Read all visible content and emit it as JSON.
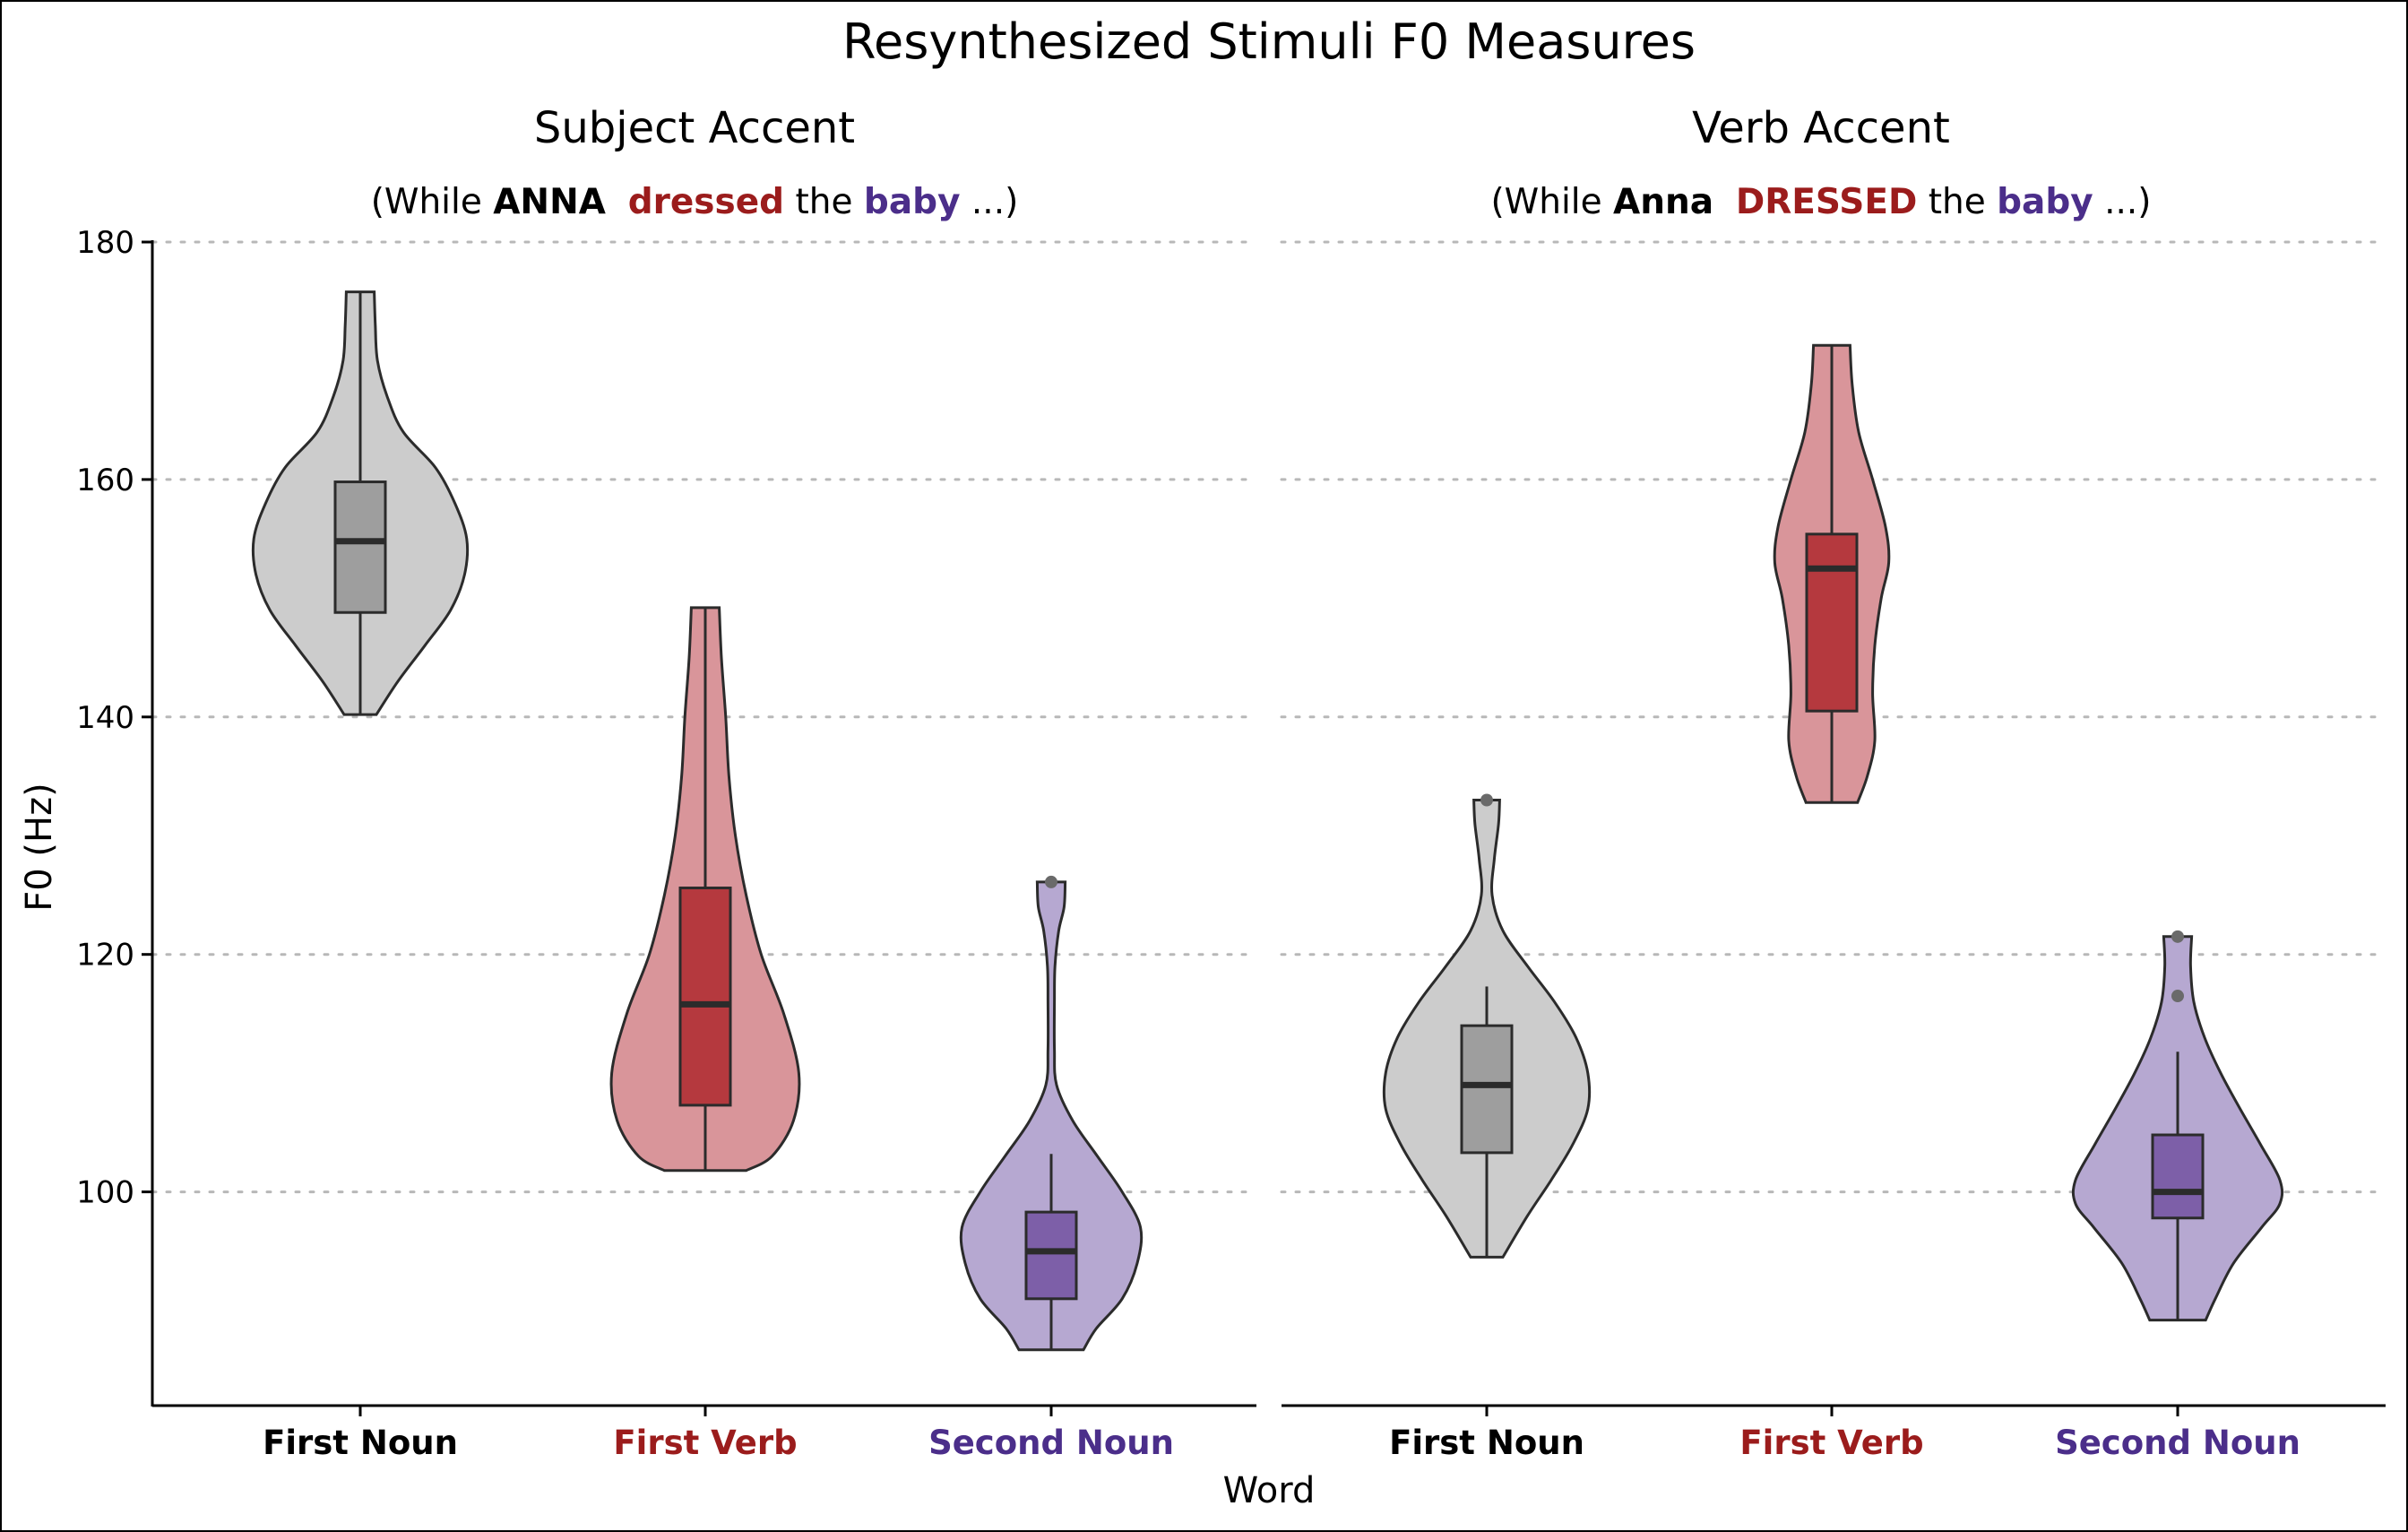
{
  "chart_data": {
    "type": "violin",
    "title": "Resynthesized Stimuli F0 Measures",
    "xlabel": "Word",
    "ylabel": "F0 (Hz)",
    "ylim": [
      82,
      180
    ],
    "yticks": [
      100,
      120,
      140,
      160,
      180
    ],
    "grid": "horizontal dotted",
    "categories": [
      "First Noun",
      "First Verb",
      "Second Noun"
    ],
    "category_colors": {
      "First Noun": "#000000",
      "First Verb": "#9b1c1c",
      "Second Noun": "#4b2e8a"
    },
    "fill_colors": {
      "First Noun": {
        "violin": "#cccccc",
        "box": "#9e9e9e"
      },
      "First Verb": {
        "violin": "#d9959a",
        "box": "#b5393e"
      },
      "Second Noun": {
        "violin": "#b6a8d1",
        "box": "#7d5fa8"
      }
    },
    "panels": [
      {
        "title": "Subject Accent",
        "subtitle": [
          {
            "text": "(While ",
            "color": "#000000",
            "bold": false
          },
          {
            "text": "ANNA",
            "color": "#000000",
            "bold": true
          },
          {
            "text": "  ",
            "color": "#000000",
            "bold": false
          },
          {
            "text": "dressed",
            "color": "#9b1c1c",
            "bold": true
          },
          {
            "text": " the ",
            "color": "#000000",
            "bold": false
          },
          {
            "text": "baby",
            "color": "#4b2e8a",
            "bold": true
          },
          {
            "text": " ...)",
            "color": "#000000",
            "bold": false
          }
        ],
        "series": [
          {
            "category": "First Noun",
            "box": {
              "whisker_low": 140.2,
              "q1": 148.8,
              "median": 154.8,
              "q3": 159.8,
              "whisker_high": 175.8
            },
            "outliers": [],
            "violin": [
              [
                175.8,
                0.13
              ],
              [
                173,
                0.14
              ],
              [
                170,
                0.16
              ],
              [
                167,
                0.25
              ],
              [
                164,
                0.4
              ],
              [
                161,
                0.7
              ],
              [
                158,
                0.88
              ],
              [
                155,
                0.99
              ],
              [
                152,
                0.97
              ],
              [
                149,
                0.84
              ],
              [
                146,
                0.6
              ],
              [
                143,
                0.35
              ],
              [
                140.2,
                0.15
              ]
            ]
          },
          {
            "category": "First Verb",
            "box": {
              "whisker_low": 101.8,
              "q1": 107.3,
              "median": 115.8,
              "q3": 125.6,
              "whisker_high": 149.2
            },
            "outliers": [],
            "violin": [
              [
                149.2,
                0.13
              ],
              [
                145,
                0.15
              ],
              [
                140,
                0.19
              ],
              [
                135,
                0.22
              ],
              [
                130,
                0.28
              ],
              [
                125,
                0.38
              ],
              [
                120,
                0.52
              ],
              [
                115,
                0.73
              ],
              [
                110,
                0.87
              ],
              [
                106,
                0.82
              ],
              [
                103,
                0.62
              ],
              [
                101.8,
                0.38
              ]
            ]
          },
          {
            "category": "Second Noun",
            "box": {
              "whisker_low": 86.7,
              "q1": 91.0,
              "median": 95.0,
              "q3": 98.3,
              "whisker_high": 103.2
            },
            "outliers": [
              126.1
            ],
            "violin": [
              [
                126.1,
                0.13
              ],
              [
                124,
                0.12
              ],
              [
                122,
                0.07
              ],
              [
                119,
                0.035
              ],
              [
                116,
                0.03
              ],
              [
                112,
                0.03
              ],
              [
                109,
                0.05
              ],
              [
                106,
                0.2
              ],
              [
                103,
                0.43
              ],
              [
                100,
                0.66
              ],
              [
                97,
                0.83
              ],
              [
                94,
                0.8
              ],
              [
                91,
                0.66
              ],
              [
                88.5,
                0.42
              ],
              [
                86.7,
                0.3
              ]
            ]
          }
        ]
      },
      {
        "title": "Verb Accent",
        "subtitle": [
          {
            "text": "(While ",
            "color": "#000000",
            "bold": false
          },
          {
            "text": "Anna",
            "color": "#000000",
            "bold": true
          },
          {
            "text": "  ",
            "color": "#000000",
            "bold": false
          },
          {
            "text": "DRESSED",
            "color": "#9b1c1c",
            "bold": true
          },
          {
            "text": " the ",
            "color": "#000000",
            "bold": false
          },
          {
            "text": "baby",
            "color": "#4b2e8a",
            "bold": true
          },
          {
            "text": " ...)",
            "color": "#000000",
            "bold": false
          }
        ],
        "series": [
          {
            "category": "First Noun",
            "box": {
              "whisker_low": 94.5,
              "q1": 103.3,
              "median": 109.0,
              "q3": 114.0,
              "whisker_high": 117.3
            },
            "outliers": [
              133.0
            ],
            "violin": [
              [
                133,
                0.12
              ],
              [
                131,
                0.11
              ],
              [
                128,
                0.07
              ],
              [
                125,
                0.05
              ],
              [
                122,
                0.15
              ],
              [
                119,
                0.38
              ],
              [
                116,
                0.63
              ],
              [
                113,
                0.83
              ],
              [
                110,
                0.94
              ],
              [
                107,
                0.94
              ],
              [
                104,
                0.8
              ],
              [
                101,
                0.6
              ],
              [
                98,
                0.38
              ],
              [
                94.5,
                0.15
              ]
            ]
          },
          {
            "category": "First Verb",
            "box": {
              "whisker_low": 132.8,
              "q1": 140.5,
              "median": 152.5,
              "q3": 155.4,
              "whisker_high": 171.3
            },
            "outliers": [],
            "violin": [
              [
                171.3,
                0.17
              ],
              [
                168,
                0.19
              ],
              [
                164,
                0.25
              ],
              [
                160,
                0.38
              ],
              [
                156,
                0.5
              ],
              [
                153,
                0.53
              ],
              [
                150,
                0.46
              ],
              [
                146,
                0.4
              ],
              [
                142,
                0.38
              ],
              [
                138,
                0.4
              ],
              [
                135,
                0.33
              ],
              [
                132.8,
                0.24
              ]
            ]
          },
          {
            "category": "Second Noun",
            "box": {
              "whisker_low": 89.2,
              "q1": 97.8,
              "median": 100.0,
              "q3": 104.8,
              "whisker_high": 111.8
            },
            "outliers": [
              121.5,
              116.5
            ],
            "violin": [
              [
                121.5,
                0.13
              ],
              [
                119,
                0.12
              ],
              [
                116,
                0.15
              ],
              [
                113,
                0.25
              ],
              [
                110,
                0.4
              ],
              [
                107,
                0.58
              ],
              [
                104,
                0.77
              ],
              [
                101,
                0.95
              ],
              [
                99,
                0.95
              ],
              [
                97,
                0.78
              ],
              [
                94,
                0.52
              ],
              [
                91,
                0.35
              ],
              [
                89.2,
                0.26
              ]
            ]
          }
        ]
      }
    ]
  }
}
